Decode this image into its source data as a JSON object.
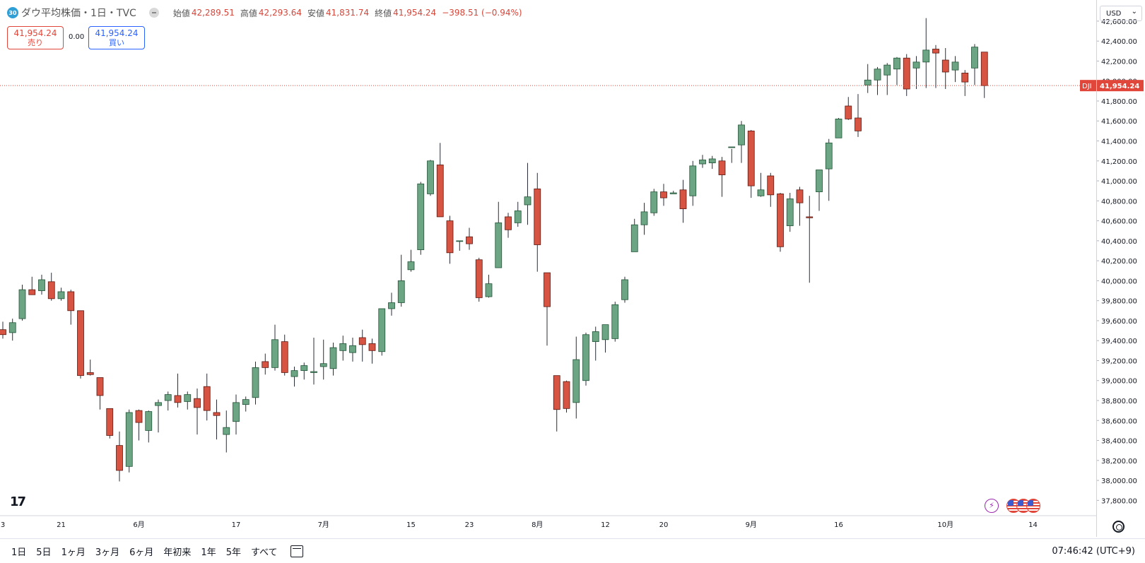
{
  "header": {
    "symbol_badge": "30",
    "title": "ダウ平均株価・1日・TVC",
    "open_label": "始値",
    "open": "42,289.51",
    "high_label": "高値",
    "high": "42,293.64",
    "low_label": "安値",
    "low": "41,831.74",
    "close_label": "終値",
    "close": "41,954.24",
    "change": "−398.51 (−0.94%)"
  },
  "quote": {
    "sell_price": "41,954.24",
    "sell_label": "売り",
    "spread": "0.00",
    "buy_price": "41,954.24",
    "buy_label": "買い"
  },
  "price_scale": {
    "currency": "USD",
    "last_symbol": "DJI",
    "last_price": "41,954.24"
  },
  "bottom_bar": {
    "ranges": [
      "1日",
      "5日",
      "1ヶ月",
      "3ヶ月",
      "6ヶ月",
      "年初来",
      "1年",
      "5年",
      "すべて"
    ],
    "clock": "07:46:42 (UTC+9)"
  },
  "colors": {
    "up": "#6ba583",
    "down": "#d75442",
    "up_border": "#225437",
    "down_border": "#5b1a13",
    "last_line": "#e0463a"
  },
  "chart_data": {
    "type": "candlestick",
    "title": "ダウ平均株価・1日・TVC",
    "ylim": [
      37700,
      42700
    ],
    "y_ticks": [
      37800,
      38000,
      38200,
      38400,
      38600,
      38800,
      39000,
      39200,
      39400,
      39600,
      39800,
      40000,
      40200,
      40400,
      40600,
      40800,
      41000,
      41200,
      41400,
      41600,
      41800,
      42000,
      42200,
      42400,
      42600
    ],
    "y_tick_labels": [
      "37,800.00",
      "38,000.00",
      "38,200.00",
      "38,400.00",
      "38,600.00",
      "38,800.00",
      "39,000.00",
      "39,200.00",
      "39,400.00",
      "39,600.00",
      "39,800.00",
      "40,000.00",
      "40,200.00",
      "40,400.00",
      "40,600.00",
      "40,800.00",
      "41,000.00",
      "41,200.00",
      "41,400.00",
      "41,600.00",
      "41,800.00",
      "42,000.00",
      "42,200.00",
      "42,400.00",
      "42,600.00"
    ],
    "last_price": 41954.24,
    "x_tick_labels": [
      {
        "label": "3",
        "bar": 0
      },
      {
        "label": "21",
        "bar": 6
      },
      {
        "label": "6月",
        "bar": 14
      },
      {
        "label": "17",
        "bar": 24
      },
      {
        "label": "7月",
        "bar": 33
      },
      {
        "label": "15",
        "bar": 42
      },
      {
        "label": "23",
        "bar": 48
      },
      {
        "label": "8月",
        "bar": 55
      },
      {
        "label": "12",
        "bar": 62
      },
      {
        "label": "20",
        "bar": 68
      },
      {
        "label": "9月",
        "bar": 77
      },
      {
        "label": "16",
        "bar": 86
      },
      {
        "label": "10月",
        "bar": 97
      },
      {
        "label": "14",
        "bar": 106
      }
    ],
    "ohlc": [
      [
        39510,
        39590,
        39420,
        39460
      ],
      [
        39480,
        39620,
        39400,
        39580
      ],
      [
        39620,
        39960,
        39600,
        39910
      ],
      [
        39910,
        40040,
        39860,
        39860
      ],
      [
        39900,
        40060,
        39860,
        40010
      ],
      [
        39990,
        40080,
        39800,
        39820
      ],
      [
        39820,
        39930,
        39800,
        39890
      ],
      [
        39890,
        39910,
        39560,
        39700
      ],
      [
        39700,
        39700,
        39020,
        39050
      ],
      [
        39080,
        39210,
        39050,
        39060
      ],
      [
        39030,
        39030,
        38710,
        38850
      ],
      [
        38720,
        38720,
        38420,
        38450
      ],
      [
        38350,
        38490,
        37990,
        38100
      ],
      [
        38140,
        38710,
        38080,
        38680
      ],
      [
        38700,
        38710,
        38400,
        38580
      ],
      [
        38500,
        38700,
        38380,
        38690
      ],
      [
        38750,
        38810,
        38480,
        38780
      ],
      [
        38800,
        38890,
        38700,
        38860
      ],
      [
        38850,
        39070,
        38730,
        38780
      ],
      [
        38790,
        38890,
        38710,
        38860
      ],
      [
        38820,
        38920,
        38460,
        38730
      ],
      [
        38940,
        39070,
        38600,
        38700
      ],
      [
        38680,
        38810,
        38410,
        38650
      ],
      [
        38460,
        38700,
        38280,
        38530
      ],
      [
        38590,
        38860,
        38460,
        38780
      ],
      [
        38760,
        38840,
        38690,
        38810
      ],
      [
        38830,
        39190,
        38760,
        39130
      ],
      [
        39190,
        39270,
        39060,
        39130
      ],
      [
        39130,
        39560,
        39100,
        39410
      ],
      [
        39390,
        39460,
        39050,
        39080
      ],
      [
        39040,
        39140,
        38940,
        39100
      ],
      [
        39100,
        39180,
        39010,
        39150
      ],
      [
        39080,
        39430,
        38960,
        39090
      ],
      [
        39140,
        39410,
        39010,
        39170
      ],
      [
        39120,
        39380,
        39050,
        39330
      ],
      [
        39300,
        39450,
        39200,
        39370
      ],
      [
        39280,
        39430,
        39190,
        39350
      ],
      [
        39430,
        39510,
        39190,
        39360
      ],
      [
        39370,
        39420,
        39170,
        39300
      ],
      [
        39290,
        39700,
        39250,
        39720
      ],
      [
        39720,
        39880,
        39650,
        39780
      ],
      [
        39780,
        40260,
        39740,
        40000
      ],
      [
        40110,
        40310,
        40090,
        40190
      ],
      [
        40310,
        40990,
        40260,
        40970
      ],
      [
        40870,
        41210,
        40850,
        41200
      ],
      [
        41160,
        41380,
        40650,
        40640
      ],
      [
        40600,
        40650,
        40170,
        40280
      ],
      [
        40400,
        40400,
        40300,
        40400
      ],
      [
        40440,
        40530,
        40310,
        40370
      ],
      [
        40210,
        40230,
        39790,
        39830
      ],
      [
        39840,
        40060,
        39830,
        39970
      ],
      [
        40130,
        40790,
        40130,
        40580
      ],
      [
        40640,
        40680,
        40430,
        40510
      ],
      [
        40580,
        40790,
        40540,
        40700
      ],
      [
        40760,
        41180,
        40560,
        40840
      ],
      [
        40920,
        41080,
        40090,
        40360
      ],
      [
        40080,
        40080,
        39350,
        39740
      ],
      [
        39050,
        39050,
        38490,
        38710
      ],
      [
        38990,
        39000,
        38680,
        38720
      ],
      [
        38780,
        39440,
        38620,
        39210
      ],
      [
        39000,
        39480,
        38950,
        39460
      ],
      [
        39390,
        39540,
        39200,
        39490
      ],
      [
        39410,
        39540,
        39280,
        39560
      ],
      [
        39420,
        39790,
        39390,
        39760
      ],
      [
        39810,
        40040,
        39780,
        40010
      ],
      [
        40290,
        40620,
        40290,
        40560
      ],
      [
        40560,
        40780,
        40460,
        40690
      ],
      [
        40680,
        40920,
        40650,
        40890
      ],
      [
        40890,
        40970,
        40750,
        40830
      ],
      [
        40870,
        40900,
        40870,
        40880
      ],
      [
        40910,
        41010,
        40580,
        40720
      ],
      [
        40850,
        41200,
        40750,
        41150
      ],
      [
        41170,
        41260,
        41130,
        41210
      ],
      [
        41180,
        41250,
        41120,
        41220
      ],
      [
        41200,
        41240,
        40840,
        41060
      ],
      [
        41340,
        41320,
        41180,
        41340
      ],
      [
        41360,
        41600,
        41180,
        41560
      ],
      [
        41500,
        41510,
        40830,
        40950
      ],
      [
        40850,
        41080,
        40840,
        40910
      ],
      [
        41050,
        41080,
        40740,
        40860
      ],
      [
        40870,
        40880,
        40290,
        40340
      ],
      [
        40550,
        40880,
        40490,
        40820
      ],
      [
        40910,
        40940,
        40550,
        40780
      ],
      [
        40640,
        40850,
        39980,
        40630
      ],
      [
        40890,
        41100,
        40700,
        41110
      ],
      [
        41120,
        41420,
        40800,
        41380
      ],
      [
        41430,
        41630,
        41430,
        41620
      ],
      [
        41750,
        41840,
        41610,
        41620
      ],
      [
        41630,
        41870,
        41440,
        41500
      ],
      [
        41960,
        42170,
        41880,
        42010
      ],
      [
        42010,
        42140,
        41860,
        42120
      ],
      [
        42060,
        42180,
        41860,
        42160
      ],
      [
        42120,
        42240,
        41960,
        42230
      ],
      [
        42230,
        42270,
        41850,
        41920
      ],
      [
        42130,
        42250,
        41920,
        42190
      ],
      [
        42190,
        42630,
        41930,
        42310
      ],
      [
        42320,
        42360,
        41930,
        42280
      ],
      [
        42210,
        42330,
        41920,
        42090
      ],
      [
        42110,
        42250,
        41990,
        42190
      ],
      [
        42080,
        42110,
        41850,
        41990
      ],
      [
        42130,
        42370,
        41960,
        42340
      ],
      [
        42290,
        42290,
        41830,
        41954
      ]
    ]
  }
}
